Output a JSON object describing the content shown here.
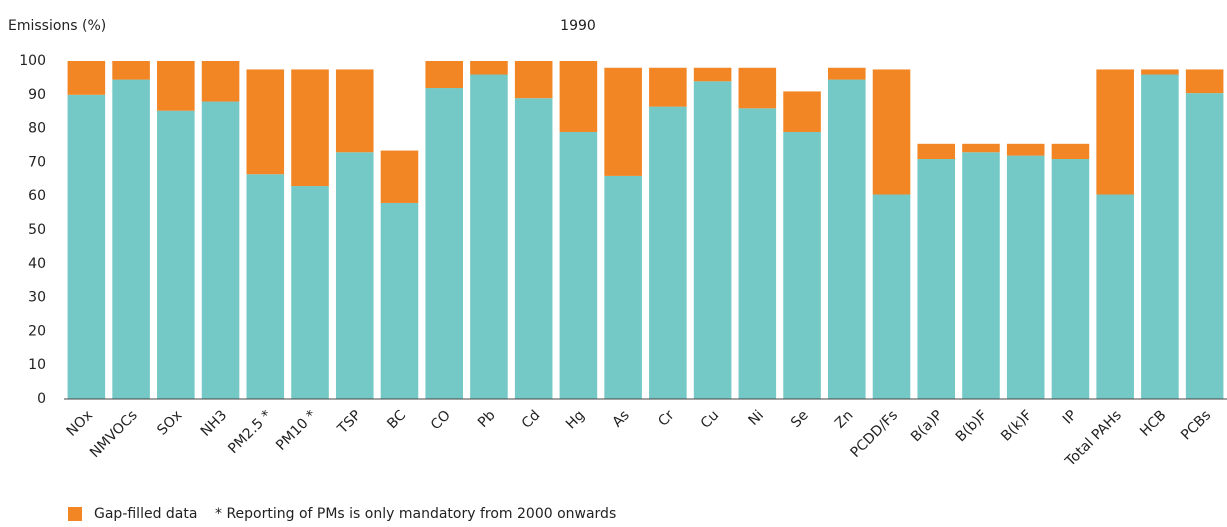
{
  "chart_data": {
    "type": "stacked_bar",
    "title": "1990",
    "y_label": "Emissions (%)",
    "note": "* Reporting of PMs is only mandatory from 2000 onwards",
    "categories": [
      "NOx",
      "NMVOCs",
      "SOx",
      "NH3",
      "PM2.5 *",
      "PM10 *",
      "TSP",
      "BC",
      "CO",
      "Pb",
      "Cd",
      "Hg",
      "As",
      "Cr",
      "Cu",
      "Ni",
      "Se",
      "Zn",
      "PCDD/Fs",
      "B(a)P",
      "B(b)F",
      "B(k)F",
      "IP",
      "Total PAHs",
      "HCB",
      "PCBs"
    ],
    "series": [
      {
        "color": "#74c9c6",
        "values": [
          90,
          94.5,
          85.3,
          88,
          66.5,
          63,
          73,
          58,
          92,
          96,
          89,
          79,
          66,
          86.5,
          94,
          86,
          79,
          94.5,
          60.5,
          71,
          73,
          72,
          71,
          60.5,
          96,
          90.5
        ]
      },
      {
        "name": "Gap-filled data",
        "color": "#f28524",
        "values": [
          10,
          5.5,
          14.7,
          12,
          31,
          34.5,
          24.5,
          15.5,
          8,
          4,
          11,
          21,
          32,
          11.5,
          4,
          12,
          12,
          3.5,
          37,
          4.5,
          2.5,
          3.5,
          4.5,
          37,
          1.5,
          7
        ]
      }
    ],
    "ylim": [
      0,
      100
    ],
    "yticks": [
      0,
      10,
      20,
      30,
      40,
      50,
      60,
      70,
      80,
      90,
      100
    ],
    "grid": false
  }
}
